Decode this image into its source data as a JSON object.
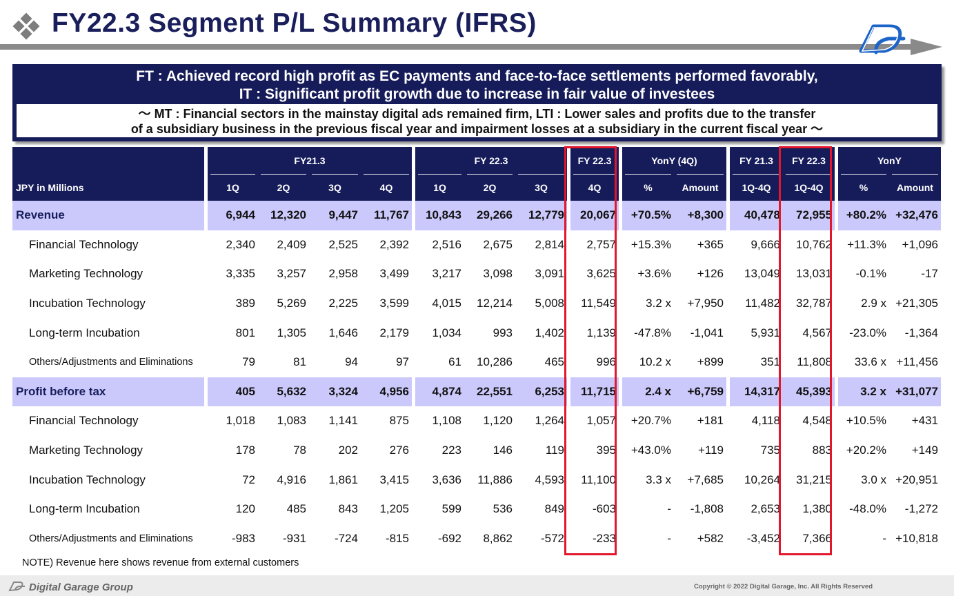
{
  "title": "FY22.3 Segment P/L Summary (IFRS)",
  "summary": {
    "line1": "FT : Achieved record high profit as EC payments and face-to-face settlements performed favorably,",
    "line2": "IT : Significant profit growth due to increase in fair value of investees",
    "sub1": "～ MT : Financial sectors in the mainstay digital ads remained firm, LTI : Lower sales and profits due to the transfer",
    "sub2": "of a subsidiary business in the previous fiscal year and impairment losses at a subsidiary in the current fiscal year ～"
  },
  "table": {
    "groups": {
      "fy21": "FY21.3",
      "fy22": "FY 22.3",
      "fy22q4": "FY 22.3",
      "yony4q": "YonY (4Q)",
      "fy21fy": "FY 21.3",
      "fy22fy": "FY 22.3",
      "yony": "YonY"
    },
    "unit_label": "JPY in Millions",
    "columns": [
      "1Q",
      "2Q",
      "3Q",
      "4Q",
      "1Q",
      "2Q",
      "3Q",
      "4Q",
      "%",
      "Amount",
      "1Q-4Q",
      "1Q-4Q",
      "%",
      "Amount"
    ],
    "rows": [
      {
        "label": "Revenue",
        "values": [
          "6,944",
          "12,320",
          "9,447",
          "11,767",
          "10,843",
          "29,266",
          "12,779",
          "20,067",
          "+70.5%",
          "+8,300",
          "40,478",
          "72,955",
          "+80.2%",
          "+32,476"
        ]
      },
      {
        "label": "Financial Technology",
        "values": [
          "2,340",
          "2,409",
          "2,525",
          "2,392",
          "2,516",
          "2,675",
          "2,814",
          "2,757",
          "+15.3%",
          "+365",
          "9,666",
          "10,762",
          "+11.3%",
          "+1,096"
        ]
      },
      {
        "label": "Marketing Technology",
        "values": [
          "3,335",
          "3,257",
          "2,958",
          "3,499",
          "3,217",
          "3,098",
          "3,091",
          "3,625",
          "+3.6%",
          "+126",
          "13,049",
          "13,031",
          "-0.1%",
          "-17"
        ]
      },
      {
        "label": "Incubation Technology",
        "values": [
          "389",
          "5,269",
          "2,225",
          "3,599",
          "4,015",
          "12,214",
          "5,008",
          "11,549",
          "3.2 x",
          "+7,950",
          "11,482",
          "32,787",
          "2.9 x",
          "+21,305"
        ]
      },
      {
        "label": "Long-term Incubation",
        "values": [
          "801",
          "1,305",
          "1,646",
          "2,179",
          "1,034",
          "993",
          "1,402",
          "1,139",
          "-47.8%",
          "-1,041",
          "5,931",
          "4,567",
          "-23.0%",
          "-1,364"
        ]
      },
      {
        "label": "Others/Adjustments and Eliminations",
        "values": [
          "79",
          "81",
          "94",
          "97",
          "61",
          "10,286",
          "465",
          "996",
          "10.2 x",
          "+899",
          "351",
          "11,808",
          "33.6 x",
          "+11,456"
        ]
      },
      {
        "label": "Profit before tax",
        "values": [
          "405",
          "5,632",
          "3,324",
          "4,956",
          "4,874",
          "22,551",
          "6,253",
          "11,715",
          "2.4 x",
          "+6,759",
          "14,317",
          "45,393",
          "3.2 x",
          "+31,077"
        ]
      },
      {
        "label": "Financial Technology",
        "values": [
          "1,018",
          "1,083",
          "1,141",
          "875",
          "1,108",
          "1,120",
          "1,264",
          "1,057",
          "+20.7%",
          "+181",
          "4,118",
          "4,548",
          "+10.5%",
          "+431"
        ]
      },
      {
        "label": "Marketing Technology",
        "values": [
          "178",
          "78",
          "202",
          "276",
          "223",
          "146",
          "119",
          "395",
          "+43.0%",
          "+119",
          "735",
          "883",
          "+20.2%",
          "+149"
        ]
      },
      {
        "label": "Incubation Technology",
        "values": [
          "72",
          "4,916",
          "1,861",
          "3,415",
          "3,636",
          "11,886",
          "4,593",
          "11,100",
          "3.3 x",
          "+7,685",
          "10,264",
          "31,215",
          "3.0 x",
          "+20,951"
        ]
      },
      {
        "label": "Long-term Incubation",
        "values": [
          "120",
          "485",
          "843",
          "1,205",
          "599",
          "536",
          "849",
          "-603",
          "-",
          "-1,808",
          "2,653",
          "1,380",
          "-48.0%",
          "-1,272"
        ]
      },
      {
        "label": "Others/Adjustments and Eliminations",
        "values": [
          "-983",
          "-931",
          "-724",
          "-815",
          "-692",
          "8,862",
          "-572",
          "-233",
          "-",
          "+582",
          "-3,452",
          "7,366",
          "-",
          "+10,818"
        ]
      }
    ]
  },
  "note": "NOTE) Revenue here shows revenue from external customers",
  "footer": {
    "brand": "Digital Garage Group",
    "copyright": "Copyright © 2022 Digital Garage, Inc. All Rights Reserved"
  },
  "colors": {
    "navy": "#161c5a",
    "highlight": "#cbc9fb",
    "frame": "#e3162c"
  },
  "icons": {
    "title": "diamond-bullet-icon",
    "logo": "dg-logo-icon"
  }
}
